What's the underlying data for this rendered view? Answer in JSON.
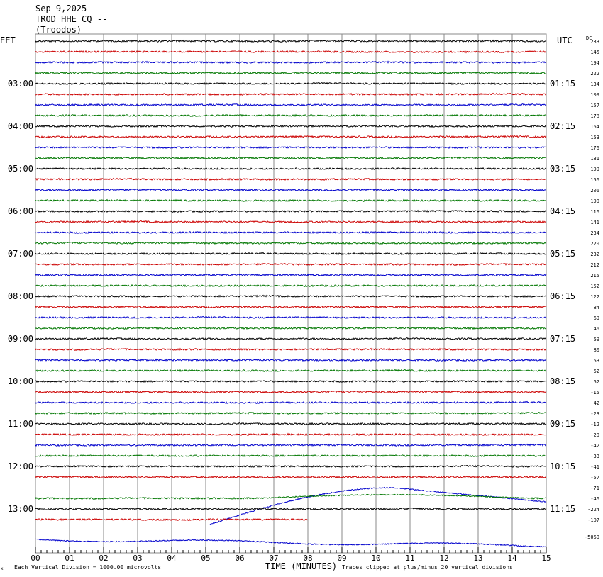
{
  "header": {
    "date": "Sep 9,2025",
    "station": "TROD HHE CQ --",
    "location": "(Troodos)"
  },
  "labels": {
    "left_timezone": "EET",
    "right_timezone": "UTC",
    "dc_header": "DC",
    "x_axis_title": "TIME (MINUTES)",
    "scale_note": "Each Vertical Division = 1000.00 microvolts",
    "clip_note": "Traces clipped at plus/minus 20 vertical divisions",
    "corner_mark": "x"
  },
  "colors": {
    "trace_cycle": [
      "#000000",
      "#cc0000",
      "#0000cc",
      "#007700"
    ],
    "grid": "#888888",
    "background": "#ffffff"
  },
  "chart_data": {
    "type": "line",
    "title": "",
    "xlabel": "TIME (MINUTES)",
    "x_range": [
      0,
      15
    ],
    "x_ticks": [
      "00",
      "01",
      "02",
      "03",
      "04",
      "05",
      "06",
      "07",
      "08",
      "09",
      "10",
      "11",
      "12",
      "13",
      "14",
      "15"
    ],
    "left_hour_labels": [
      "03:00",
      "04:00",
      "05:00",
      "06:00",
      "07:00",
      "08:00",
      "09:00",
      "10:00",
      "11:00",
      "12:00",
      "13:00"
    ],
    "right_hour_labels": [
      "01:15",
      "02:15",
      "03:15",
      "04:15",
      "05:15",
      "06:15",
      "07:15",
      "08:15",
      "09:15",
      "10:15",
      "11:15"
    ],
    "trace_dc_offsets": [
      "233",
      "145",
      "194",
      "222",
      "134",
      "109",
      "157",
      "178",
      "164",
      "153",
      "176",
      "181",
      "199",
      "156",
      "206",
      "190",
      "116",
      "141",
      "234",
      "220",
      "232",
      "212",
      "215",
      "152",
      "122",
      "84",
      "69",
      "46",
      "59",
      "80",
      "53",
      "52",
      "52",
      "-15",
      "42",
      "-23",
      "-12",
      "-20",
      "-42",
      "-33",
      "-41",
      "-57",
      "-71",
      "-46",
      "-224",
      "-107",
      "-5050"
    ],
    "trace_count": 47,
    "last_trace_end_minutes": 8,
    "events": [
      {
        "trace": 42,
        "description": "long-period drift",
        "start_min": 5.1,
        "end_min": 15,
        "peak_min": 10.5
      }
    ]
  }
}
